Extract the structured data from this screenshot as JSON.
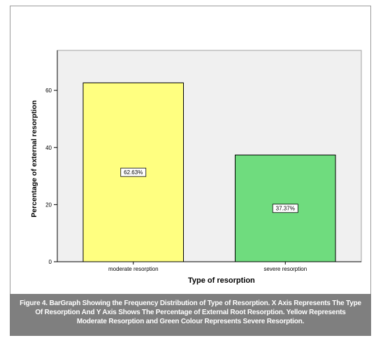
{
  "chart_data": {
    "type": "bar",
    "categories": [
      "moderate resorption",
      "severe resorption"
    ],
    "values": [
      62.63,
      37.37
    ],
    "data_labels": [
      "62.63%",
      "37.37%"
    ],
    "colors": [
      "#ffff80",
      "#6fdc7e"
    ],
    "xlabel": "Type of resorption",
    "ylabel": "Percentage of external resorption",
    "ylim": [
      0,
      74
    ],
    "yticks": [
      0,
      20,
      40,
      60
    ],
    "plot_background": "#f0f0f0",
    "grid": false,
    "legend": "none"
  },
  "caption": "Figure 4. BarGraph Showing the Frequency Distribution of Type of Resorption. X Axis Represents The Type Of Resorption And Y Axis Shows The Percentage of External Root Resorption. Yellow Represents Moderate Resorption and Green Colour Represents Severe Resorption."
}
